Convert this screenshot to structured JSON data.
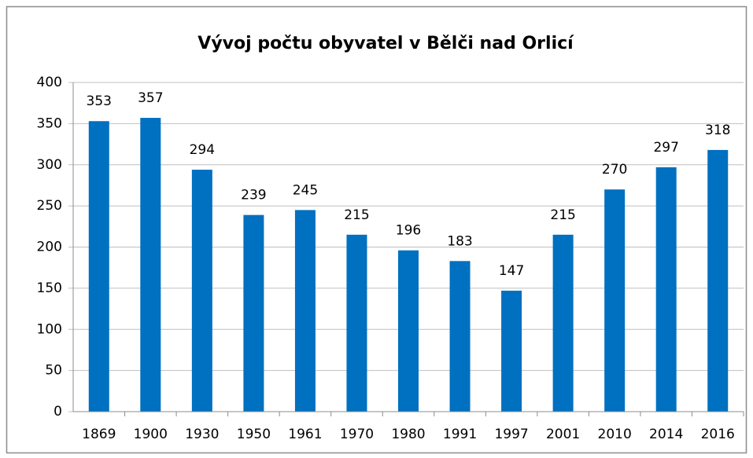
{
  "chart_data": {
    "type": "bar",
    "title": "Vývoj počtu obyvatel v Bělči nad Orlicí",
    "categories": [
      "1869",
      "1900",
      "1930",
      "1950",
      "1961",
      "1970",
      "1980",
      "1991",
      "1997",
      "2001",
      "2010",
      "2014",
      "2016"
    ],
    "values": [
      353,
      357,
      294,
      239,
      245,
      215,
      196,
      183,
      147,
      215,
      270,
      297,
      318
    ],
    "color": "#0070c0",
    "ylim": [
      0,
      400
    ],
    "yticks": [
      0,
      50,
      100,
      150,
      200,
      250,
      300,
      350,
      400
    ],
    "grid": true
  }
}
